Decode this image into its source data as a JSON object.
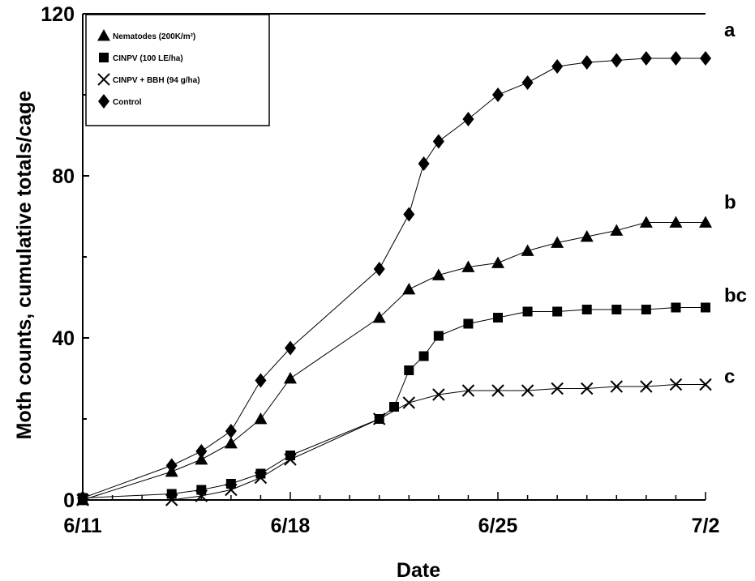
{
  "chart_data": {
    "type": "line",
    "title": "",
    "xlabel": "Date",
    "ylabel": "Moth counts, cumulative totals/cage",
    "ylim": [
      0,
      120
    ],
    "yticks": [
      0,
      40,
      80,
      120
    ],
    "xlim": [
      "6/11",
      "7/2"
    ],
    "xticks": [
      "6/11",
      "6/18",
      "6/25",
      "7/2"
    ],
    "legend_position": "top-left",
    "grid": false,
    "series": [
      {
        "name": "Nematodes (200K/m²)",
        "marker": "triangle",
        "x": [
          "6/11",
          "6/14",
          "6/15",
          "6/16",
          "6/17",
          "6/18",
          "6/21",
          "6/22",
          "6/23",
          "6/24",
          "6/25",
          "6/26",
          "6/27",
          "6/28",
          "6/29",
          "6/30",
          "7/1",
          "7/2"
        ],
        "y": [
          0,
          7,
          10,
          14,
          20,
          30,
          45,
          52,
          55.5,
          57.5,
          58.5,
          61.5,
          63.5,
          65,
          66.5,
          68.5,
          68.5,
          68.5
        ]
      },
      {
        "name": "CINPV (100 LE/ha)",
        "marker": "square",
        "x": [
          "6/11",
          "6/14",
          "6/15",
          "6/16",
          "6/17",
          "6/18",
          "6/21",
          "6/21.5",
          "6/22",
          "6/22.5",
          "6/23",
          "6/24",
          "6/25",
          "6/26",
          "6/27",
          "6/28",
          "6/29",
          "6/30",
          "7/1",
          "7/2"
        ],
        "y": [
          0.5,
          1.5,
          2.5,
          4,
          6.5,
          11,
          20,
          23,
          32,
          35.5,
          40.5,
          43.5,
          45,
          46.5,
          46.5,
          47,
          47,
          47,
          47.5,
          47.5
        ]
      },
      {
        "name": "CINPV + BBH (94 g/ha)",
        "marker": "x",
        "x": [
          "6/11",
          "6/14",
          "6/15",
          "6/16",
          "6/17",
          "6/18",
          "6/21",
          "6/22",
          "6/23",
          "6/24",
          "6/25",
          "6/26",
          "6/27",
          "6/28",
          "6/29",
          "6/30",
          "7/1",
          "7/2"
        ],
        "y": [
          0,
          0,
          1,
          2.5,
          5.5,
          10,
          20,
          24,
          26,
          27,
          27,
          27,
          27.5,
          27.5,
          28,
          28,
          28.5,
          28.5
        ]
      },
      {
        "name": "Control",
        "marker": "diamond",
        "x": [
          "6/11",
          "6/14",
          "6/15",
          "6/16",
          "6/17",
          "6/18",
          "6/21",
          "6/22",
          "6/22.5",
          "6/23",
          "6/24",
          "6/25",
          "6/26",
          "6/27",
          "6/28",
          "6/29",
          "6/30",
          "7/1",
          "7/2"
        ],
        "y": [
          0.5,
          8.5,
          12,
          17,
          29.5,
          37.5,
          57,
          70.5,
          83,
          88.5,
          94,
          100,
          103,
          107,
          108,
          108.5,
          109,
          109,
          109
        ]
      }
    ],
    "group_labels": [
      {
        "text": "a",
        "y": 116
      },
      {
        "text": "b",
        "y": 73.5
      },
      {
        "text": "bc",
        "y": 50.5
      },
      {
        "text": "c",
        "y": 30.5
      }
    ]
  }
}
